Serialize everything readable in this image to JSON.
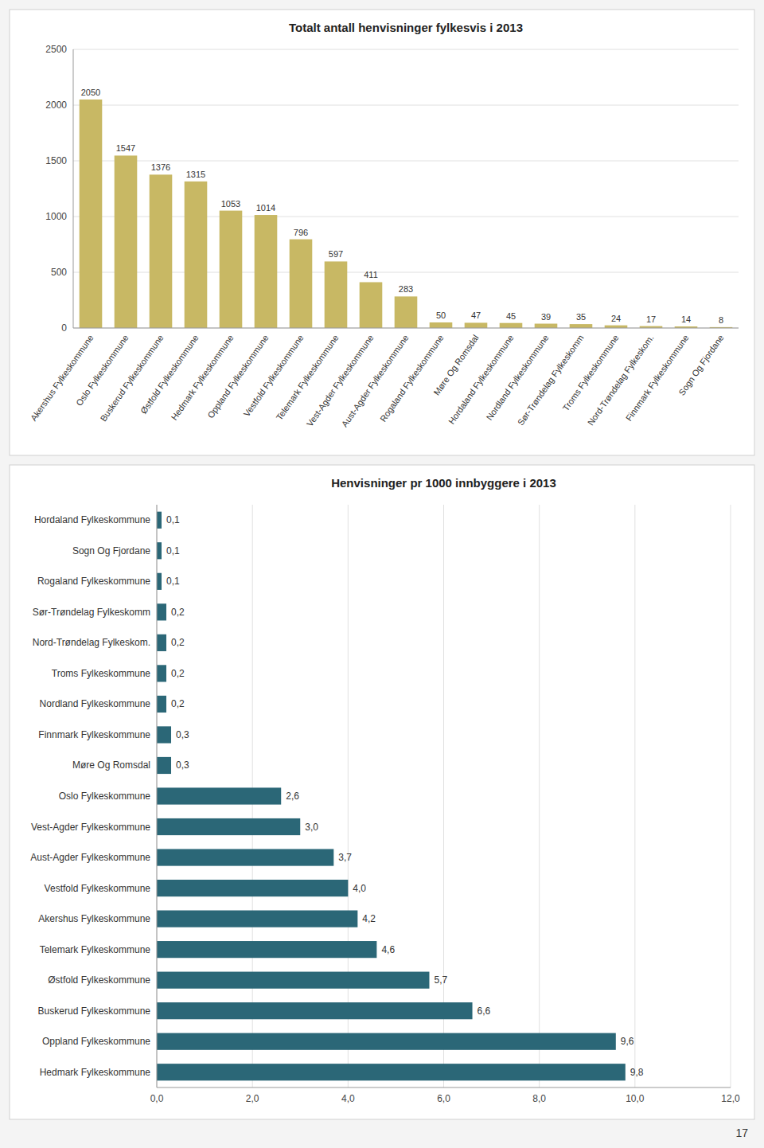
{
  "chart_data": [
    {
      "type": "bar",
      "title": "Totalt antall henvisninger fylkesvis i 2013",
      "categories": [
        "Akershus Fylkeskommune",
        "Oslo Fylkeskommune",
        "Buskerud Fylkeskommune",
        "Østfold Fylkeskommune",
        "Hedmark Fylkeskommune",
        "Oppland Fylkeskommune",
        "Vestfold Fylkeskommune",
        "Telemark Fylkeskommune",
        "Vest-Agder Fylkeskommune",
        "Aust-Agder Fylkeskommune",
        "Rogaland Fylkeskommune",
        "Møre Og Romsdal",
        "Hordaland Fylkeskommune",
        "Nordland Fylkeskommune",
        "Sør-Trøndelag Fylkeskomm",
        "Troms Fylkeskommune",
        "Nord-Trøndelag Fylkeskom.",
        "Finnmark Fylkeskommune",
        "Sogn Og Fjordane"
      ],
      "values": [
        2050,
        1547,
        1376,
        1315,
        1053,
        1014,
        796,
        597,
        411,
        283,
        50,
        47,
        45,
        39,
        35,
        24,
        17,
        14,
        8
      ],
      "color": "#C8B864",
      "ylim": [
        0,
        2500
      ],
      "yticks": [
        0,
        500,
        1000,
        1500,
        2000,
        2500
      ],
      "grid": true,
      "data_labels": true
    },
    {
      "type": "bar",
      "orientation": "horizontal",
      "title": "Henvisninger pr 1000 innbyggere i 2013",
      "categories": [
        "Hordaland Fylkeskommune",
        "Sogn Og Fjordane",
        "Rogaland Fylkeskommune",
        "Sør-Trøndelag Fylkeskomm",
        "Nord-Trøndelag Fylkeskom.",
        "Troms Fylkeskommune",
        "Nordland Fylkeskommune",
        "Finnmark Fylkeskommune",
        "Møre Og Romsdal",
        "Oslo Fylkeskommune",
        "Vest-Agder Fylkeskommune",
        "Aust-Agder Fylkeskommune",
        "Vestfold Fylkeskommune",
        "Akershus Fylkeskommune",
        "Telemark Fylkeskommune",
        "Østfold Fylkeskommune",
        "Buskerud Fylkeskommune",
        "Oppland Fylkeskommune",
        "Hedmark Fylkeskommune"
      ],
      "values": [
        0.1,
        0.1,
        0.1,
        0.2,
        0.2,
        0.2,
        0.2,
        0.3,
        0.3,
        2.6,
        3.0,
        3.7,
        4.0,
        4.2,
        4.6,
        5.7,
        6.6,
        9.6,
        9.8
      ],
      "value_labels": [
        "0,1",
        "0,1",
        "0,1",
        "0,2",
        "0,2",
        "0,2",
        "0,2",
        "0,3",
        "0,3",
        "2,6",
        "3,0",
        "3,7",
        "4,0",
        "4,2",
        "4,6",
        "5,7",
        "6,6",
        "9,6",
        "9,8"
      ],
      "color": "#2B6777",
      "xlim": [
        0,
        12
      ],
      "xticks": [
        {
          "value": 0.0,
          "label": "0,0"
        },
        {
          "value": 2.0,
          "label": "2,0"
        },
        {
          "value": 4.0,
          "label": "4,0"
        },
        {
          "value": 6.0,
          "label": "6,0"
        },
        {
          "value": 8.0,
          "label": "8,0"
        },
        {
          "value": 10.0,
          "label": "10,0"
        },
        {
          "value": 12.0,
          "label": "12,0"
        }
      ],
      "grid": true,
      "data_labels": true
    }
  ],
  "page_number": "17"
}
